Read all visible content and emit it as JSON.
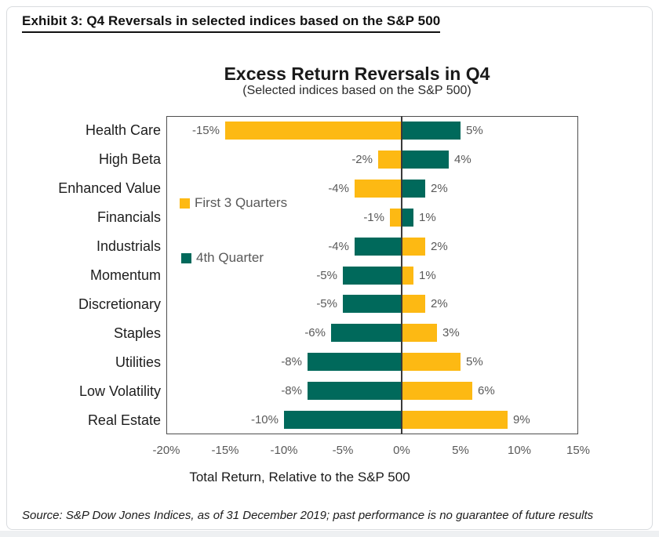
{
  "page": {
    "exhibit_title": "Exhibit 3: Q4 Reversals in selected indices based on the S&P 500",
    "source_note": "Source: S&P Dow Jones Indices, as of 31 December 2019; past performance is no guarantee of future results"
  },
  "chart_data": {
    "type": "bar",
    "orientation": "horizontal",
    "title": "Excess Return Reversals in Q4",
    "subtitle": "(Selected indices based on the S&P 500)",
    "xlabel": "Total Return, Relative to the S&P 500",
    "xlim": [
      -20,
      15
    ],
    "grid": false,
    "legend_position": "inside-plot-left",
    "series": [
      {
        "name": "First 3 Quarters",
        "color": "#FDB913"
      },
      {
        "name": "4th Quarter",
        "color": "#00695B"
      }
    ],
    "rows": [
      {
        "category": "Health Care",
        "first3q": -15,
        "q4": 5,
        "first3q_label": "-15%",
        "q4_label": "5%"
      },
      {
        "category": "High Beta",
        "first3q": -2,
        "q4": 4,
        "first3q_label": "-2%",
        "q4_label": "4%"
      },
      {
        "category": "Enhanced Value",
        "first3q": -4,
        "q4": 2,
        "first3q_label": "-4%",
        "q4_label": "2%"
      },
      {
        "category": "Financials",
        "first3q": -1,
        "q4": 1,
        "first3q_label": "-1%",
        "q4_label": "1%"
      },
      {
        "category": "Industrials",
        "first3q": 2,
        "q4": -4,
        "first3q_label": "2%",
        "q4_label": "-4%"
      },
      {
        "category": "Momentum",
        "first3q": 1,
        "q4": -5,
        "first3q_label": "1%",
        "q4_label": "-5%"
      },
      {
        "category": "Discretionary",
        "first3q": 2,
        "q4": -5,
        "first3q_label": "2%",
        "q4_label": "-5%"
      },
      {
        "category": "Staples",
        "first3q": 3,
        "q4": -6,
        "first3q_label": "3%",
        "q4_label": "-6%"
      },
      {
        "category": "Utilities",
        "first3q": 5,
        "q4": -8,
        "first3q_label": "5%",
        "q4_label": "-8%"
      },
      {
        "category": "Low Volatility",
        "first3q": 6,
        "q4": -8,
        "first3q_label": "6%",
        "q4_label": "-8%"
      },
      {
        "category": "Real Estate",
        "first3q": 9,
        "q4": -10,
        "first3q_label": "9%",
        "q4_label": "-10%"
      }
    ],
    "x_ticks": [
      {
        "value": -20,
        "label": "-20%"
      },
      {
        "value": -15,
        "label": "-15%"
      },
      {
        "value": -10,
        "label": "-10%"
      },
      {
        "value": -5,
        "label": "-5%"
      },
      {
        "value": 0,
        "label": "0%"
      },
      {
        "value": 5,
        "label": "5%"
      },
      {
        "value": 10,
        "label": "10%"
      },
      {
        "value": 15,
        "label": "15%"
      }
    ],
    "colors": {
      "value_label": "#595959",
      "tick_label": "#595959",
      "axis_border": "#4f4f4f",
      "zero_line": "#3a3a3a"
    }
  }
}
